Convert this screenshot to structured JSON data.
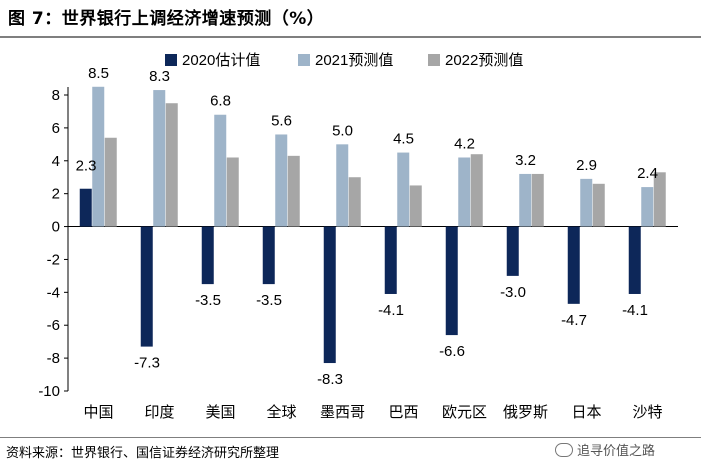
{
  "header": {
    "title": "图 7：世界银行上调经济增速预测（%）"
  },
  "footer": {
    "source": "资料来源：世界银行、国信证券经济研究所整理",
    "watermark": "追寻价值之路"
  },
  "colors": {
    "s2020": "#0d2759",
    "s2021": "#9eb4c9",
    "s2022": "#a6a6a6"
  },
  "chart_data": {
    "type": "bar",
    "categories": [
      "中国",
      "印度",
      "美国",
      "全球",
      "墨西哥",
      "巴西",
      "欧元区",
      "俄罗斯",
      "日本",
      "沙特"
    ],
    "series": [
      {
        "name": "2020估计值",
        "values": [
          2.3,
          -7.3,
          -3.5,
          -3.5,
          -8.3,
          -4.1,
          -6.6,
          -3.0,
          -4.7,
          -4.1
        ]
      },
      {
        "name": "2021预测值",
        "values": [
          8.5,
          8.3,
          6.8,
          5.6,
          5.0,
          4.5,
          4.2,
          3.2,
          2.9,
          2.4
        ]
      },
      {
        "name": "2022预测值",
        "values": [
          5.4,
          7.5,
          4.2,
          4.3,
          3.0,
          2.5,
          4.4,
          3.2,
          2.6,
          3.3
        ]
      }
    ],
    "labels_2020": [
      "2.3",
      "-7.3",
      "-3.5",
      "-3.5",
      "-8.3",
      "-4.1",
      "-6.6",
      "-3.0",
      "-4.7",
      "-4.1"
    ],
    "labels_2021": [
      "8.5",
      "8.3",
      "6.8",
      "5.6",
      "5.0",
      "4.5",
      "4.2",
      "3.2",
      "2.9",
      "2.4"
    ],
    "yticks": [
      "8",
      "6",
      "4",
      "2",
      "0",
      "-2",
      "-4",
      "-6",
      "-8",
      "-10"
    ],
    "ylim": [
      -10,
      8
    ],
    "legend_position": "top"
  }
}
